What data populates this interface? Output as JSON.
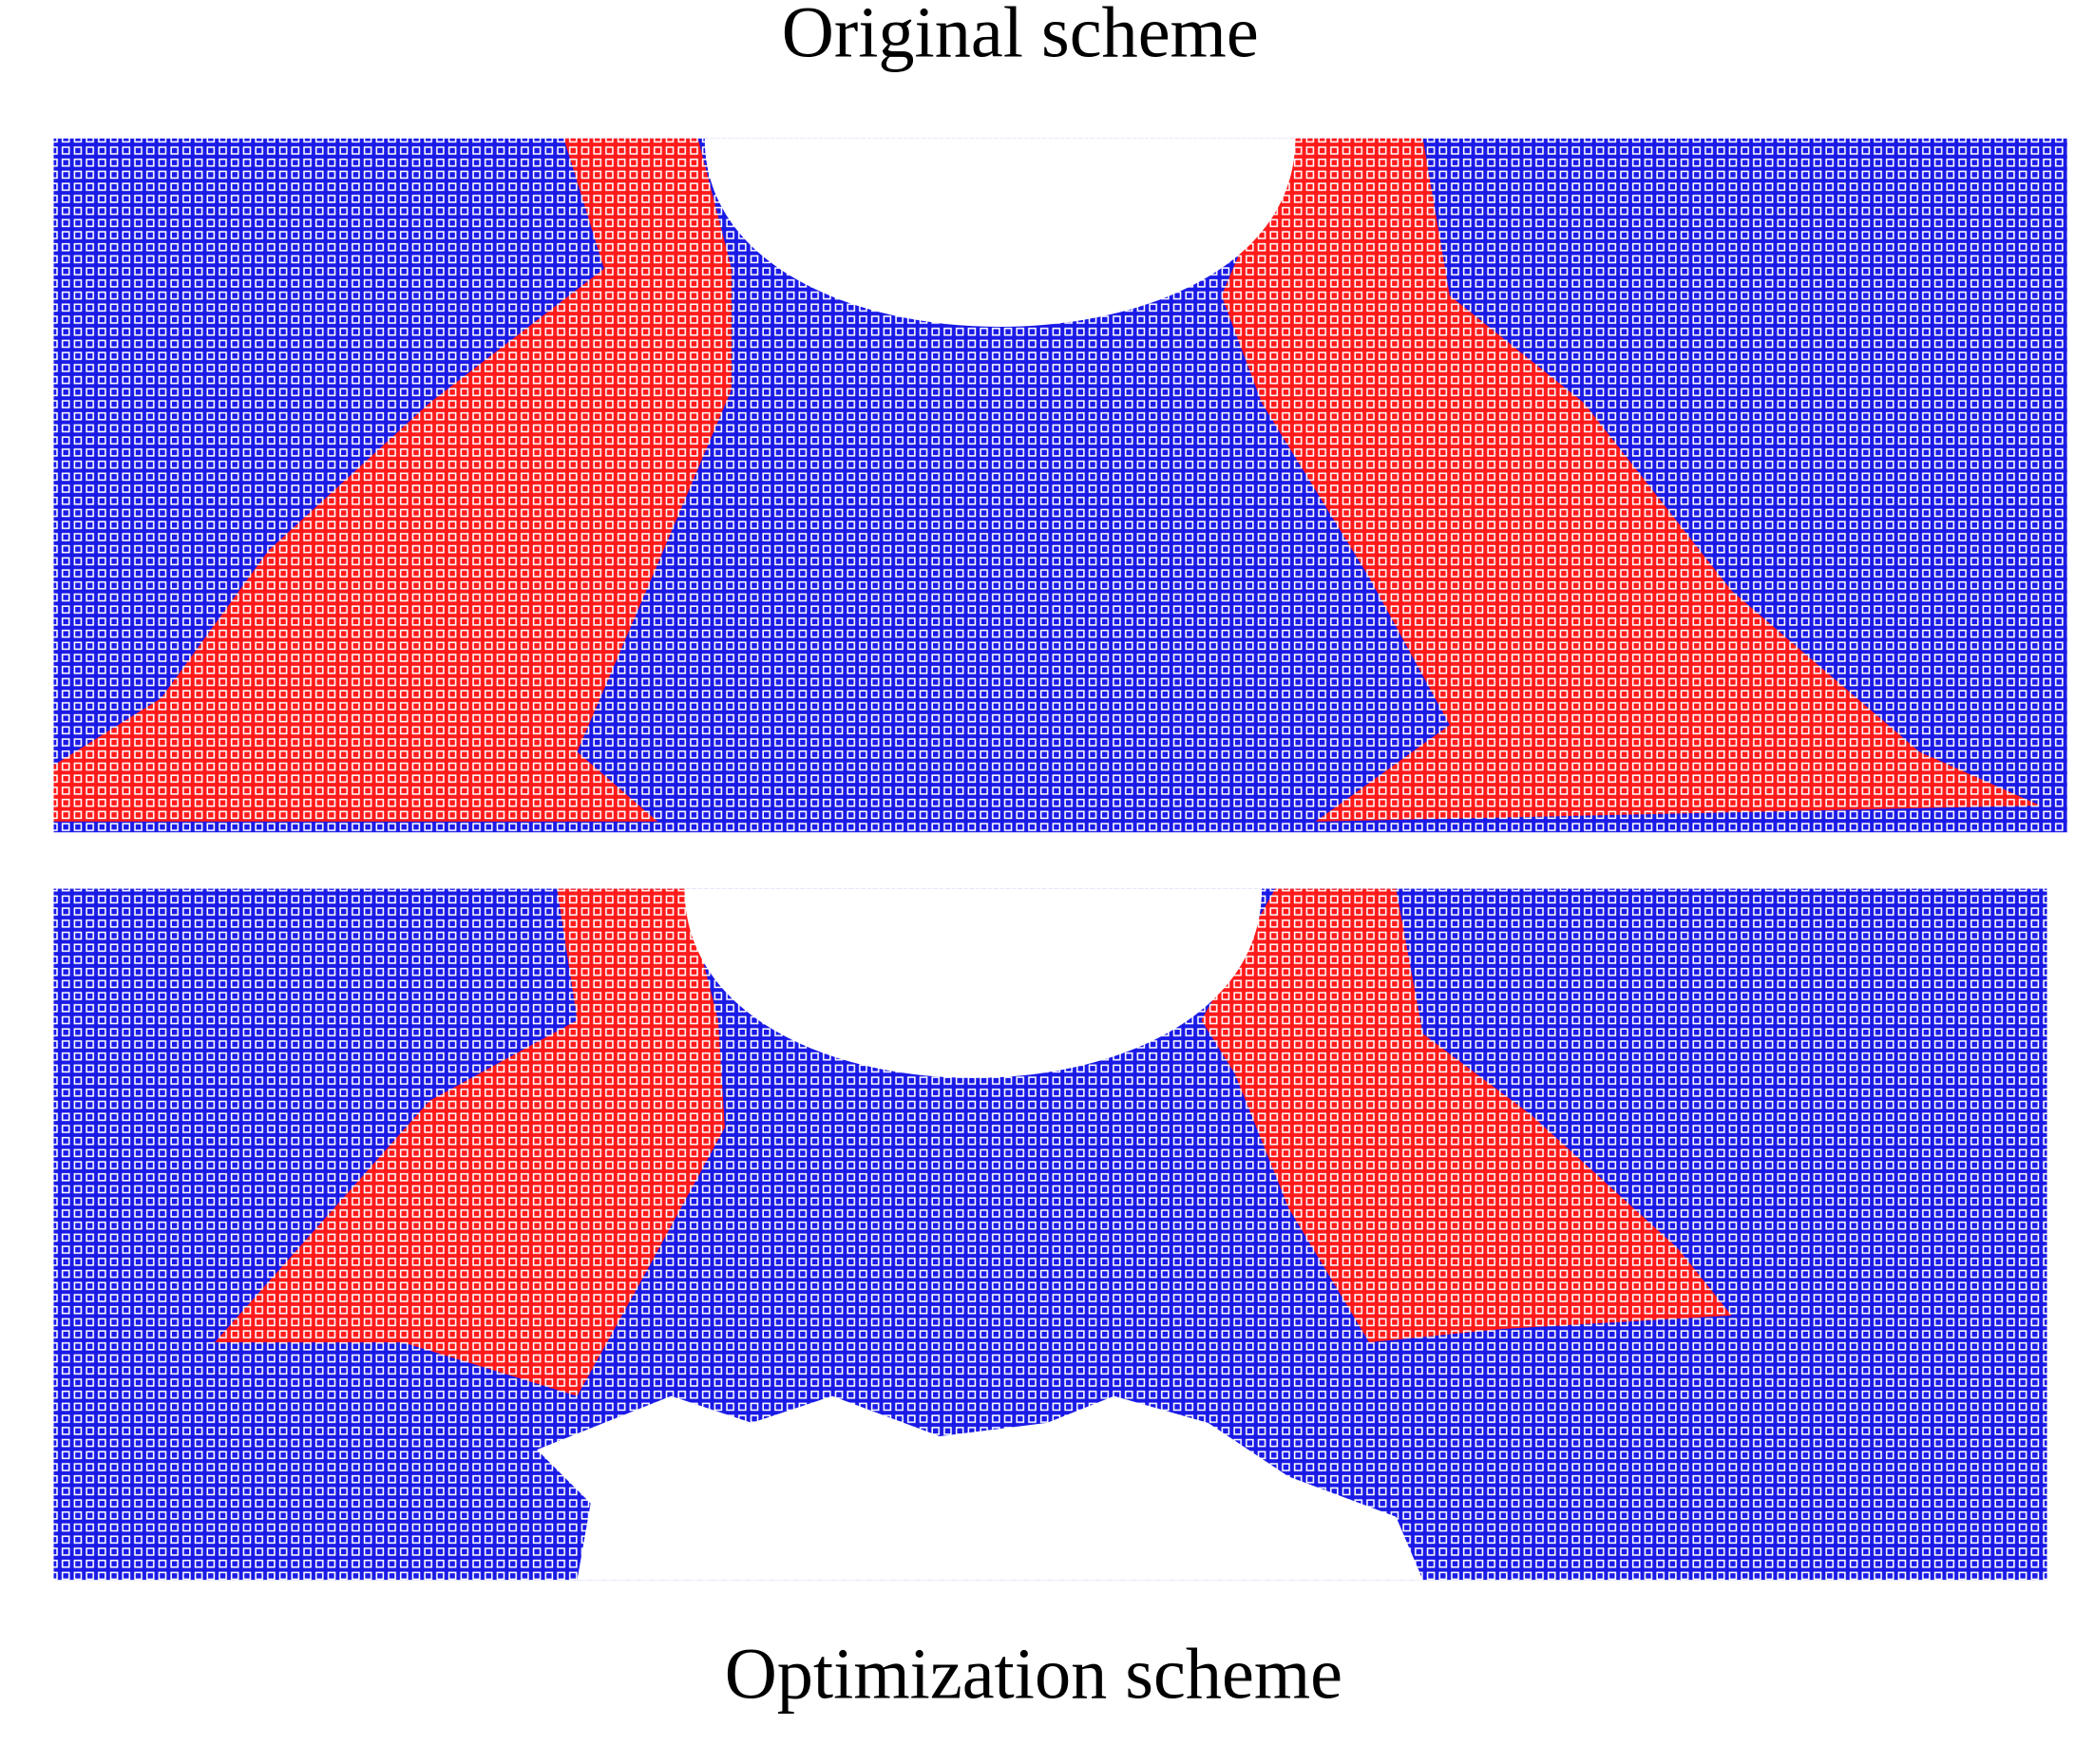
{
  "panels": [
    {
      "caption": "Original scheme"
    },
    {
      "caption": "Optimization scheme"
    }
  ]
}
